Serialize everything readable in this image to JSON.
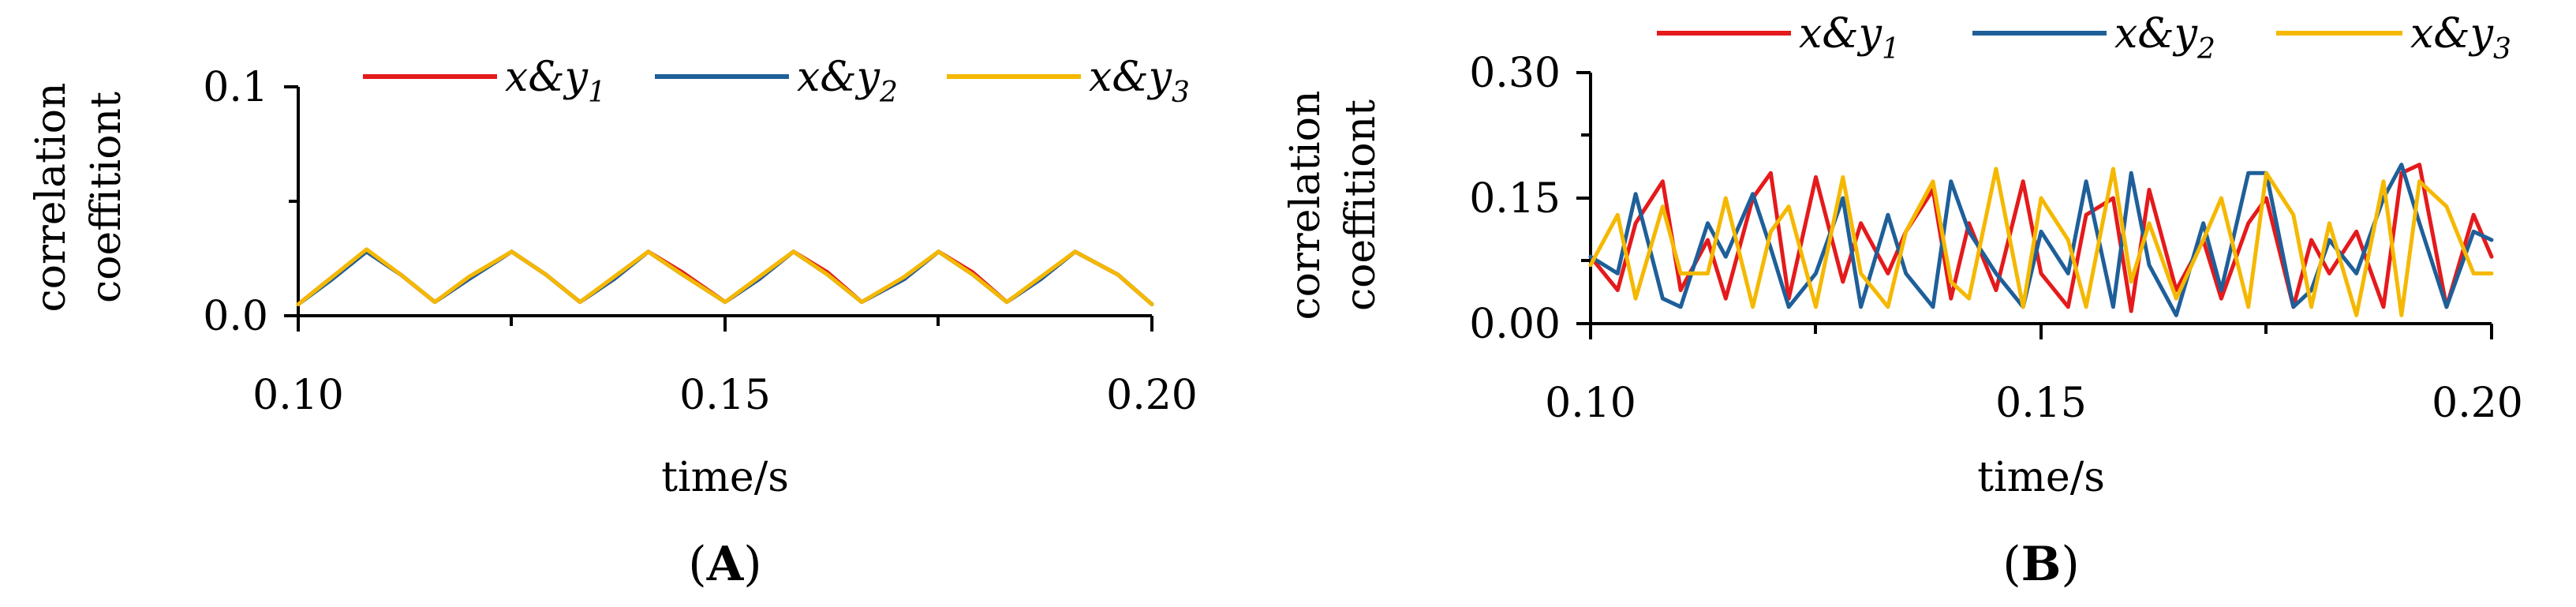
{
  "colors": {
    "series_1": "#e41a1c",
    "series_2": "#1f5f99",
    "series_3": "#f5b800"
  },
  "chart_data": [
    {
      "type": "line",
      "panel": "A",
      "title": "",
      "xlabel": "time/s",
      "ylabel_lines": [
        "correlation",
        "coeffitiont"
      ],
      "xlim": [
        0.1,
        0.2
      ],
      "ylim": [
        0.0,
        0.1
      ],
      "xticks": [
        "0.10",
        "0.15",
        "0.20"
      ],
      "yticks": [
        "0.0",
        "0.1"
      ],
      "grid": false,
      "legend_placement": "top",
      "series": [
        {
          "name": "x&y",
          "subscript": "1",
          "color": "#e41a1c",
          "x": [
            0.1,
            0.104,
            0.108,
            0.112,
            0.116,
            0.12,
            0.125,
            0.129,
            0.133,
            0.137,
            0.141,
            0.145,
            0.15,
            0.154,
            0.158,
            0.162,
            0.166,
            0.171,
            0.175,
            0.179,
            0.183,
            0.187,
            0.191,
            0.196,
            0.2
          ],
          "y": [
            0.005,
            0.017,
            0.028,
            0.018,
            0.006,
            0.016,
            0.028,
            0.018,
            0.006,
            0.016,
            0.028,
            0.019,
            0.006,
            0.016,
            0.028,
            0.019,
            0.006,
            0.016,
            0.028,
            0.019,
            0.006,
            0.016,
            0.028,
            0.018,
            0.005
          ]
        },
        {
          "name": "x&y",
          "subscript": "2",
          "color": "#1f5f99",
          "x": [
            0.1,
            0.104,
            0.108,
            0.112,
            0.116,
            0.12,
            0.125,
            0.129,
            0.133,
            0.137,
            0.141,
            0.145,
            0.15,
            0.154,
            0.158,
            0.162,
            0.166,
            0.171,
            0.175,
            0.179,
            0.183,
            0.187,
            0.191,
            0.196,
            0.2
          ],
          "y": [
            0.005,
            0.016,
            0.028,
            0.018,
            0.006,
            0.016,
            0.028,
            0.018,
            0.006,
            0.016,
            0.028,
            0.018,
            0.006,
            0.016,
            0.028,
            0.018,
            0.006,
            0.016,
            0.028,
            0.018,
            0.006,
            0.016,
            0.028,
            0.018,
            0.005
          ]
        },
        {
          "name": "x&y",
          "subscript": "3",
          "color": "#f5b800",
          "x": [
            0.1,
            0.104,
            0.108,
            0.112,
            0.116,
            0.12,
            0.125,
            0.129,
            0.133,
            0.137,
            0.141,
            0.145,
            0.15,
            0.154,
            0.158,
            0.162,
            0.166,
            0.171,
            0.175,
            0.179,
            0.183,
            0.187,
            0.191,
            0.196,
            0.2
          ],
          "y": [
            0.005,
            0.017,
            0.029,
            0.018,
            0.006,
            0.017,
            0.028,
            0.018,
            0.006,
            0.017,
            0.028,
            0.018,
            0.006,
            0.017,
            0.028,
            0.018,
            0.006,
            0.017,
            0.028,
            0.018,
            0.006,
            0.017,
            0.028,
            0.018,
            0.005
          ]
        }
      ]
    },
    {
      "type": "line",
      "panel": "B",
      "title": "",
      "xlabel": "time/s",
      "ylabel_lines": [
        "correlation",
        "coeffitiont"
      ],
      "xlim": [
        0.1,
        0.2
      ],
      "ylim": [
        0.0,
        0.3
      ],
      "xticks": [
        "0.10",
        "0.15",
        "0.20"
      ],
      "yticks": [
        "0.00",
        "0.15",
        "0.30"
      ],
      "grid": false,
      "legend_placement": "top",
      "series": [
        {
          "name": "x&y",
          "subscript": "1",
          "color": "#e41a1c",
          "x": [
            0.1,
            0.103,
            0.105,
            0.108,
            0.11,
            0.113,
            0.115,
            0.118,
            0.12,
            0.122,
            0.125,
            0.128,
            0.13,
            0.133,
            0.135,
            0.138,
            0.14,
            0.142,
            0.145,
            0.148,
            0.15,
            0.153,
            0.155,
            0.158,
            0.16,
            0.162,
            0.165,
            0.168,
            0.17,
            0.173,
            0.175,
            0.178,
            0.18,
            0.182,
            0.185,
            0.188,
            0.19,
            0.192,
            0.195,
            0.198,
            0.2
          ],
          "y": [
            0.08,
            0.04,
            0.12,
            0.17,
            0.04,
            0.1,
            0.03,
            0.15,
            0.18,
            0.03,
            0.175,
            0.05,
            0.12,
            0.06,
            0.11,
            0.16,
            0.03,
            0.12,
            0.04,
            0.17,
            0.06,
            0.02,
            0.13,
            0.15,
            0.015,
            0.16,
            0.04,
            0.1,
            0.03,
            0.12,
            0.15,
            0.02,
            0.1,
            0.06,
            0.11,
            0.02,
            0.18,
            0.19,
            0.02,
            0.13,
            0.08
          ]
        },
        {
          "name": "x&y",
          "subscript": "2",
          "color": "#1f5f99",
          "x": [
            0.1,
            0.103,
            0.105,
            0.108,
            0.11,
            0.113,
            0.115,
            0.118,
            0.12,
            0.122,
            0.125,
            0.128,
            0.13,
            0.133,
            0.135,
            0.138,
            0.14,
            0.142,
            0.145,
            0.148,
            0.15,
            0.153,
            0.155,
            0.158,
            0.16,
            0.162,
            0.165,
            0.168,
            0.17,
            0.173,
            0.175,
            0.178,
            0.18,
            0.182,
            0.185,
            0.188,
            0.19,
            0.192,
            0.195,
            0.198,
            0.2
          ],
          "y": [
            0.08,
            0.06,
            0.155,
            0.03,
            0.02,
            0.12,
            0.08,
            0.155,
            0.09,
            0.02,
            0.06,
            0.15,
            0.02,
            0.13,
            0.06,
            0.02,
            0.17,
            0.11,
            0.06,
            0.02,
            0.11,
            0.06,
            0.17,
            0.02,
            0.18,
            0.07,
            0.01,
            0.12,
            0.04,
            0.18,
            0.18,
            0.02,
            0.04,
            0.1,
            0.06,
            0.15,
            0.19,
            0.12,
            0.02,
            0.11,
            0.1
          ]
        },
        {
          "name": "x&y",
          "subscript": "3",
          "color": "#f5b800",
          "x": [
            0.1,
            0.103,
            0.105,
            0.108,
            0.11,
            0.113,
            0.115,
            0.118,
            0.12,
            0.122,
            0.125,
            0.128,
            0.13,
            0.133,
            0.135,
            0.138,
            0.14,
            0.142,
            0.145,
            0.148,
            0.15,
            0.153,
            0.155,
            0.158,
            0.16,
            0.162,
            0.165,
            0.168,
            0.17,
            0.173,
            0.175,
            0.178,
            0.18,
            0.182,
            0.185,
            0.188,
            0.19,
            0.192,
            0.195,
            0.198,
            0.2
          ],
          "y": [
            0.07,
            0.13,
            0.03,
            0.14,
            0.06,
            0.06,
            0.15,
            0.02,
            0.11,
            0.14,
            0.02,
            0.175,
            0.06,
            0.02,
            0.11,
            0.17,
            0.05,
            0.03,
            0.185,
            0.02,
            0.15,
            0.1,
            0.02,
            0.185,
            0.05,
            0.12,
            0.03,
            0.1,
            0.15,
            0.02,
            0.18,
            0.13,
            0.02,
            0.12,
            0.01,
            0.17,
            0.01,
            0.17,
            0.14,
            0.06,
            0.06
          ]
        }
      ]
    }
  ],
  "panels": [
    {
      "label_open": "(",
      "label_letter": "A",
      "label_close": ")"
    },
    {
      "label_open": "(",
      "label_letter": "B",
      "label_close": ")"
    }
  ]
}
